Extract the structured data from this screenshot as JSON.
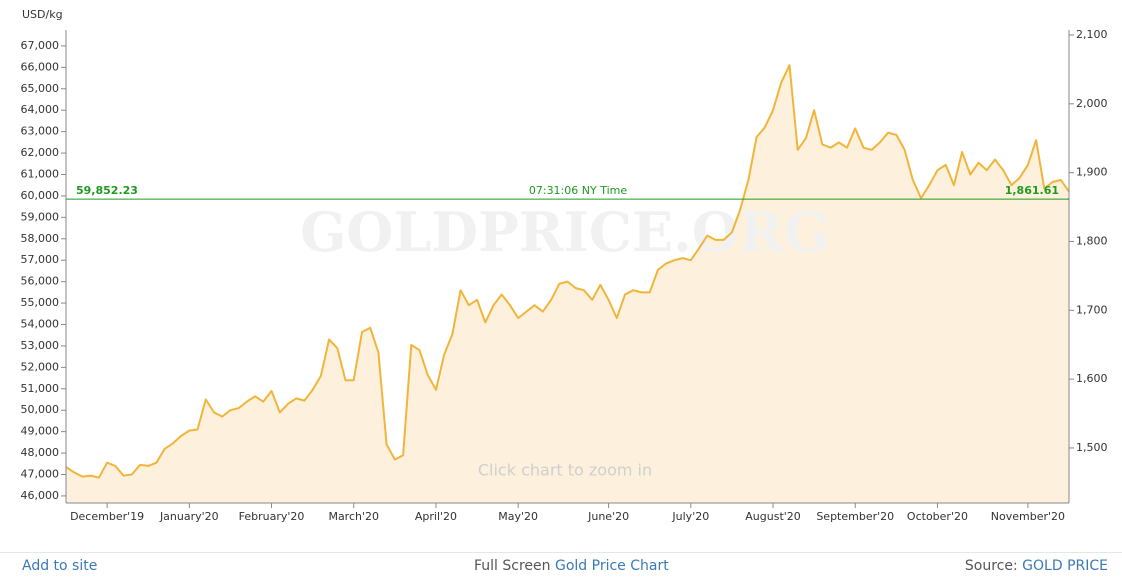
{
  "chart_data": {
    "type": "area",
    "y_label": "USD/kg",
    "watermark": "GOLDPRICE.ORG",
    "hint": "Click chart to zoom in",
    "categories": [
      null,
      null,
      null,
      null,
      null,
      "December'19",
      null,
      null,
      null,
      null,
      null,
      null,
      null,
      null,
      null,
      "January'20",
      null,
      null,
      null,
      null,
      null,
      null,
      null,
      null,
      null,
      "February'20",
      null,
      null,
      null,
      null,
      null,
      null,
      null,
      null,
      null,
      "March'20",
      null,
      null,
      null,
      null,
      null,
      null,
      null,
      null,
      null,
      "April'20",
      null,
      null,
      null,
      null,
      null,
      null,
      null,
      null,
      null,
      "May'20",
      null,
      null,
      null,
      null,
      null,
      null,
      null,
      null,
      null,
      null,
      "June'20",
      null,
      null,
      null,
      null,
      null,
      null,
      null,
      null,
      null,
      "July'20",
      null,
      null,
      null,
      null,
      null,
      null,
      null,
      null,
      null,
      "August'20",
      null,
      null,
      null,
      null,
      null,
      null,
      null,
      null,
      null,
      "September'20",
      null,
      null,
      null,
      null,
      null,
      null,
      null,
      null,
      null,
      "October'20",
      null,
      null,
      null,
      null,
      null,
      null,
      null,
      null,
      null,
      null,
      "November'20",
      null,
      null,
      null,
      null,
      null
    ],
    "series": [
      {
        "name": "Gold Price",
        "color": "#f0b53a",
        "fill": "#fdf1dd",
        "values": [
          47350,
          47100,
          46900,
          46950,
          46850,
          47550,
          47400,
          46950,
          47000,
          47450,
          47400,
          47550,
          48200,
          48450,
          48800,
          49050,
          49100,
          50500,
          49900,
          49700,
          50000,
          50100,
          50400,
          50650,
          50400,
          50900,
          49900,
          50300,
          50550,
          50450,
          50950,
          51600,
          53300,
          52900,
          51400,
          51400,
          53650,
          53850,
          52700,
          48400,
          47700,
          47900,
          53050,
          52800,
          51650,
          50950,
          52600,
          53550,
          55600,
          54900,
          55150,
          54100,
          54900,
          55400,
          54900,
          54300,
          54600,
          54900,
          54600,
          55150,
          55900,
          56000,
          55700,
          55600,
          55150,
          55850,
          55150,
          54300,
          55400,
          55600,
          55500,
          55500,
          56550,
          56850,
          57000,
          57100,
          57000,
          57550,
          58150,
          57950,
          57950,
          58300,
          59350,
          60750,
          62750,
          63200,
          64000,
          65300,
          66100,
          62150,
          62700,
          64000,
          62400,
          62250,
          62500,
          62250,
          63150,
          62250,
          62150,
          62500,
          62950,
          62850,
          62150,
          60750,
          59900,
          60500,
          61200,
          61450,
          60500,
          62050,
          61000,
          61550,
          61200,
          61700,
          61200,
          60500,
          60850,
          61450,
          62600,
          60350,
          60650,
          60750,
          60200
        ]
      }
    ],
    "ylim": [
      45670,
      67510
    ],
    "yticks": [
      {
        "value": 46000,
        "label": "46,000"
      },
      {
        "value": 47000,
        "label": "47,000"
      },
      {
        "value": 48000,
        "label": "48,000"
      },
      {
        "value": 49000,
        "label": "49,000"
      },
      {
        "value": 50000,
        "label": "50,000"
      },
      {
        "value": 51000,
        "label": "51,000"
      },
      {
        "value": 52000,
        "label": "52,000"
      },
      {
        "value": 53000,
        "label": "53,000"
      },
      {
        "value": 54000,
        "label": "54,000"
      },
      {
        "value": 55000,
        "label": "55,000"
      },
      {
        "value": 56000,
        "label": "56,000"
      },
      {
        "value": 57000,
        "label": "57,000"
      },
      {
        "value": 58000,
        "label": "58,000"
      },
      {
        "value": 59000,
        "label": "59,000"
      },
      {
        "value": 60000,
        "label": "60,000"
      },
      {
        "value": 61000,
        "label": "61,000"
      },
      {
        "value": 62000,
        "label": "62,000"
      },
      {
        "value": 63000,
        "label": "63,000"
      },
      {
        "value": 64000,
        "label": "64,000"
      },
      {
        "value": 65000,
        "label": "65,000"
      },
      {
        "value": 66000,
        "label": "66,000"
      },
      {
        "value": 67000,
        "label": "67,000"
      }
    ],
    "y2lim": [
      1420,
      2100
    ],
    "y2ticks": [
      {
        "value": 1500,
        "label": "1,500"
      },
      {
        "value": 1600,
        "label": "1,600"
      },
      {
        "value": 1700,
        "label": "1,700"
      },
      {
        "value": 1800,
        "label": "1,800"
      },
      {
        "value": 1900,
        "label": "1,900"
      },
      {
        "value": 2000,
        "label": "2,000"
      },
      {
        "value": 2100,
        "label": "2,100"
      }
    ],
    "current": {
      "value": 59852.23,
      "label": "59,852.23",
      "value_y2": 1861.61,
      "label_y2": "1,861.61",
      "time": "07:31:06 NY Time",
      "color": "#1f9a1f"
    }
  },
  "footer": {
    "left": "Add to site",
    "center_prefix": "Full Screen",
    "center_link": "Gold Price Chart",
    "right_prefix": "Source:",
    "right_link": "GOLD PRICE"
  }
}
